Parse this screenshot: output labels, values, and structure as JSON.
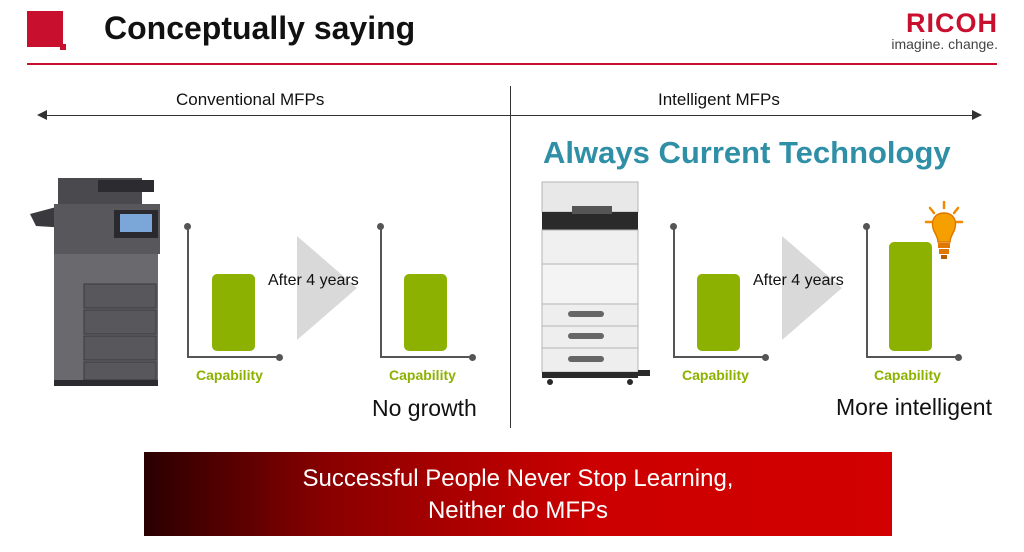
{
  "header": {
    "title": "Conceptually saying",
    "logo_word": "RICOH",
    "logo_tagline": "imagine. change."
  },
  "sections": {
    "left_label": "Conventional MFPs",
    "right_label": "Intelligent MFPs"
  },
  "headline": "Always Current Technology",
  "left_panel": {
    "after_label": "After 4 years",
    "before_capability_label": "Capability",
    "after_capability_label": "Capability",
    "result": "No growth",
    "capability_before": 1,
    "capability_after": 1
  },
  "right_panel": {
    "after_label": "After 4 years",
    "before_capability_label": "Capability",
    "after_capability_label": "Capability",
    "result": "More intelligent",
    "capability_before": 1,
    "capability_after": 1.4
  },
  "banner": {
    "line1": "Successful People Never Stop Learning,",
    "line2": "Neither do MFPs"
  },
  "icons": [
    "printer-icon",
    "lightbulb-icon"
  ],
  "colors": {
    "brand_red": "#c8102e",
    "capability_green": "#8db100",
    "headline_teal": "#2e8fa6"
  }
}
